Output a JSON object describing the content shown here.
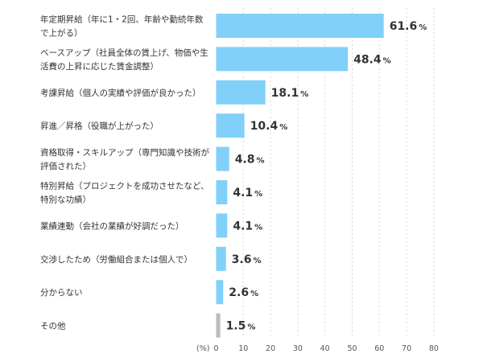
{
  "chart_data": {
    "type": "bar",
    "orientation": "horizontal",
    "categories": [
      [
        "年定期昇給（年に1・2回、年齢や勤続年数",
        "で上がる）"
      ],
      [
        "ベースアップ（社員全体の賃上げ、物価や生",
        "活費の上昇に応じた賃金調整）"
      ],
      [
        "考課昇給（個人の実績や評価が良かった）"
      ],
      [
        "昇進／昇格（役職が上がった）"
      ],
      [
        "資格取得・スキルアップ（専門知識や技術が",
        "評価された）"
      ],
      [
        "特別昇給（プロジェクトを成功させたなど、",
        "特別な功績）"
      ],
      [
        "業績連動（会社の業績が好調だった）"
      ],
      [
        "交渉したため（労働組合または個人で）"
      ],
      [
        "分からない"
      ],
      [
        "その他"
      ]
    ],
    "values": [
      61.6,
      48.4,
      18.1,
      10.4,
      4.8,
      4.1,
      4.1,
      3.6,
      2.6,
      1.5
    ],
    "value_unit": "%",
    "axis_unit_label": "(%)",
    "xlim": [
      0,
      80
    ],
    "xticks": [
      0,
      10,
      20,
      30,
      40,
      50,
      60,
      70,
      80
    ],
    "grid": true,
    "colors": {
      "bar": "#80d0fa",
      "bar_other": "#bbbbbb"
    }
  }
}
